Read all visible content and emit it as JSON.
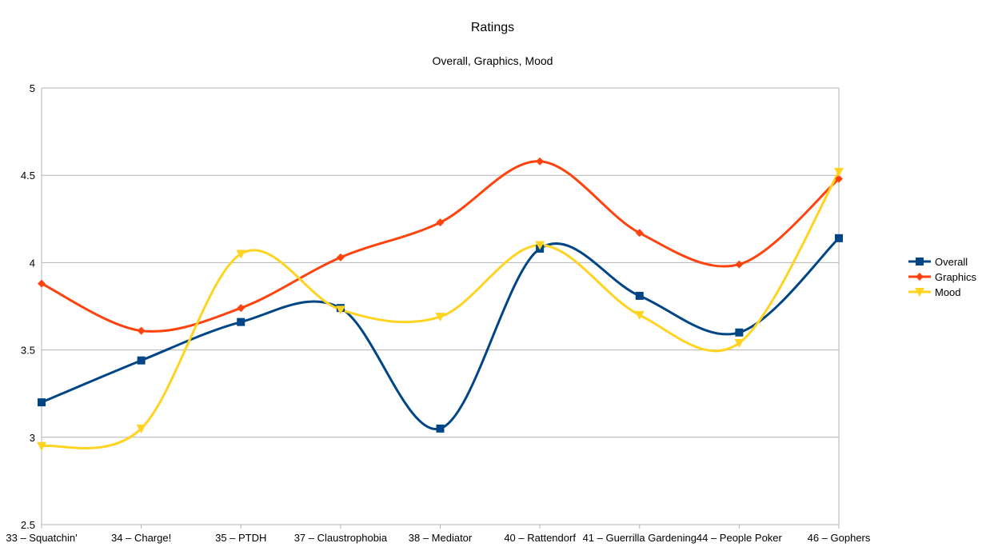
{
  "chart_data": {
    "type": "line",
    "title": "Ratings",
    "subtitle": "Overall, Graphics, Mood",
    "xlabel": "",
    "ylabel": "",
    "categories": [
      "33 – Squatchin'",
      "34 – Charge!",
      "35 – PTDH",
      "37 – Claustrophobia",
      "38 – Mediator",
      "40 – Rattendorf",
      "41 – Guerrilla Gardening",
      "44 – People Poker",
      "46 – Gophers"
    ],
    "ylim": [
      2.5,
      5
    ],
    "yticks": [
      "2.5",
      "3",
      "3.5",
      "4",
      "4.5",
      "5"
    ],
    "grid": true,
    "smooth": true,
    "legend_position": "right",
    "series": [
      {
        "name": "Overall",
        "color": "#004586",
        "marker": "square",
        "values": [
          3.2,
          3.44,
          3.66,
          3.74,
          3.05,
          4.08,
          3.81,
          3.6,
          4.14
        ]
      },
      {
        "name": "Graphics",
        "color": "#ff420e",
        "marker": "diamond",
        "values": [
          3.88,
          3.61,
          3.74,
          4.03,
          4.23,
          4.58,
          4.17,
          3.99,
          4.48
        ]
      },
      {
        "name": "Mood",
        "color": "#ffd320",
        "marker": "triangle-down",
        "values": [
          2.95,
          3.05,
          4.05,
          3.73,
          3.69,
          4.1,
          3.7,
          3.54,
          4.52
        ]
      }
    ]
  }
}
